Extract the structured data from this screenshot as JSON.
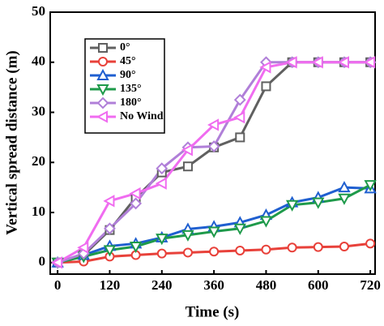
{
  "chart_data": {
    "type": "line",
    "x_label": "Time (s)",
    "y_label": "Vertical spread distance (m)",
    "x": [
      0,
      60,
      120,
      180,
      240,
      300,
      360,
      420,
      480,
      540,
      600,
      660,
      720
    ],
    "xlim": [
      -17,
      731
    ],
    "xticks": [
      0,
      120,
      240,
      360,
      480,
      600,
      720
    ],
    "ylim": [
      -2.3,
      50
    ],
    "yticks": [
      0,
      10,
      20,
      30,
      40,
      50
    ],
    "legend": "upper-left",
    "series": [
      {
        "name": "0°",
        "color": "#606060",
        "marker": "square",
        "values": [
          0,
          1.5,
          6.5,
          13,
          18,
          19.2,
          23,
          25,
          35.2,
          40,
          40,
          40,
          40
        ]
      },
      {
        "name": "45°",
        "color": "#e8413a",
        "marker": "circle",
        "values": [
          0,
          0.2,
          1.2,
          1.5,
          1.8,
          2,
          2.2,
          2.4,
          2.6,
          3,
          3.1,
          3.2,
          3.8
        ]
      },
      {
        "name": "90°",
        "color": "#1f5fd0",
        "marker": "triangle-up",
        "values": [
          0,
          1.5,
          3.3,
          3.8,
          5,
          6.7,
          7.2,
          8,
          9.5,
          12,
          13,
          15,
          14.8
        ]
      },
      {
        "name": "135°",
        "color": "#1e9a4a",
        "marker": "triangle-down",
        "values": [
          0,
          1.2,
          2.5,
          3.2,
          4.8,
          5.5,
          6.2,
          6.8,
          8.3,
          11.5,
          12,
          12.8,
          15.5
        ]
      },
      {
        "name": "180°",
        "color": "#b07fd8",
        "marker": "diamond",
        "values": [
          0,
          1.8,
          6.8,
          11.8,
          18.8,
          23,
          23.2,
          32.5,
          40,
          40,
          40,
          40,
          40
        ]
      },
      {
        "name": "No Wind",
        "color": "#f06cf0",
        "marker": "triangle-left",
        "values": [
          0,
          3,
          12.3,
          13.8,
          15.8,
          22.5,
          27.5,
          29,
          39,
          40,
          40,
          40,
          40
        ]
      }
    ]
  }
}
